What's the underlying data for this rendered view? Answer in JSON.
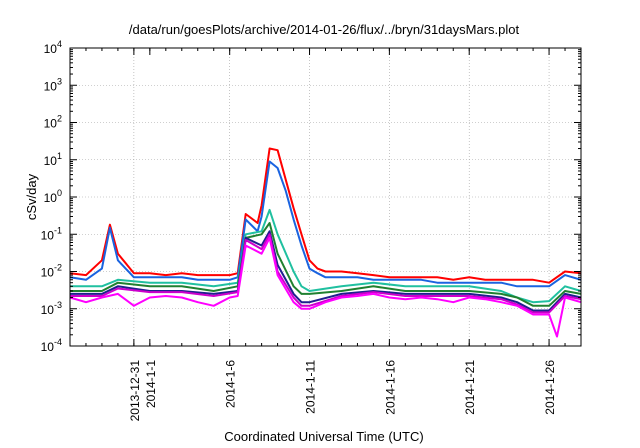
{
  "chart_data": {
    "type": "line",
    "title": "/data/run/goesPlots/archive/2014-01-26/flux/../bryn/31daysMars.plot",
    "xlabel": "Coordinated Universal Time (UTC)",
    "ylabel": "cSv/day",
    "yscale": "log",
    "ylim": [
      0.0001,
      10000
    ],
    "xlim": [
      "2013-12-27",
      "2014-01-28"
    ],
    "grid": true,
    "x_ticks": [
      "2013-12-31",
      "2014-1-1",
      "2014-1-6",
      "2014-1-11",
      "2014-1-16",
      "2014-1-21",
      "2014-1-26"
    ],
    "y_ticks": [
      {
        "value": 0.0001,
        "base": "10",
        "exp": "-4"
      },
      {
        "value": 0.001,
        "base": "10",
        "exp": "-3"
      },
      {
        "value": 0.01,
        "base": "10",
        "exp": "-2"
      },
      {
        "value": 0.1,
        "base": "10",
        "exp": "-1"
      },
      {
        "value": 1,
        "base": "10",
        "exp": "0"
      },
      {
        "value": 10,
        "base": "10",
        "exp": "1"
      },
      {
        "value": 100,
        "base": "10",
        "exp": "2"
      },
      {
        "value": 1000,
        "base": "10",
        "exp": "3"
      },
      {
        "value": 10000,
        "base": "10",
        "exp": "4"
      }
    ],
    "series": [
      {
        "color": "#ff0000",
        "x": [
          "2013-12-27",
          "2013-12-28",
          "2013-12-29",
          "2013-12-29T12",
          "2013-12-30",
          "2013-12-31",
          "2014-01-01",
          "2014-01-02",
          "2014-01-03",
          "2014-01-04",
          "2014-01-05",
          "2014-01-06",
          "2014-01-06T12",
          "2014-01-07",
          "2014-01-07T18",
          "2014-01-08",
          "2014-01-08T12",
          "2014-01-09",
          "2014-01-09T12",
          "2014-01-10",
          "2014-01-10T12",
          "2014-01-11",
          "2014-01-11T12",
          "2014-01-12",
          "2014-01-13",
          "2014-01-14",
          "2014-01-15",
          "2014-01-16",
          "2014-01-17",
          "2014-01-18",
          "2014-01-19",
          "2014-01-20",
          "2014-01-21",
          "2014-01-22",
          "2014-01-23",
          "2014-01-24",
          "2014-01-25",
          "2014-01-26",
          "2014-01-27",
          "2014-01-28"
        ],
        "values": [
          0.009,
          0.008,
          0.02,
          0.18,
          0.03,
          0.009,
          0.009,
          0.008,
          0.009,
          0.008,
          0.008,
          0.008,
          0.009,
          0.35,
          0.2,
          0.6,
          20,
          18,
          3,
          0.5,
          0.1,
          0.02,
          0.012,
          0.01,
          0.01,
          0.009,
          0.008,
          0.007,
          0.007,
          0.007,
          0.007,
          0.006,
          0.007,
          0.006,
          0.006,
          0.006,
          0.006,
          0.005,
          0.01,
          0.009
        ]
      },
      {
        "color": "#1a63e0",
        "x": [
          "2013-12-27",
          "2013-12-28",
          "2013-12-29",
          "2013-12-29T12",
          "2013-12-30",
          "2013-12-31",
          "2014-01-01",
          "2014-01-02",
          "2014-01-03",
          "2014-01-04",
          "2014-01-05",
          "2014-01-06",
          "2014-01-06T12",
          "2014-01-07",
          "2014-01-07T18",
          "2014-01-08",
          "2014-01-08T12",
          "2014-01-09",
          "2014-01-09T12",
          "2014-01-10",
          "2014-01-10T12",
          "2014-01-11",
          "2014-01-11T12",
          "2014-01-12",
          "2014-01-13",
          "2014-01-14",
          "2014-01-15",
          "2014-01-16",
          "2014-01-17",
          "2014-01-18",
          "2014-01-19",
          "2014-01-20",
          "2014-01-21",
          "2014-01-22",
          "2014-01-23",
          "2014-01-24",
          "2014-01-25",
          "2014-01-26",
          "2014-01-27",
          "2014-01-28"
        ],
        "values": [
          0.007,
          0.006,
          0.012,
          0.15,
          0.02,
          0.007,
          0.007,
          0.007,
          0.007,
          0.006,
          0.006,
          0.006,
          0.007,
          0.25,
          0.12,
          0.3,
          9,
          6,
          1.5,
          0.25,
          0.05,
          0.012,
          0.009,
          0.007,
          0.007,
          0.007,
          0.006,
          0.006,
          0.006,
          0.006,
          0.005,
          0.005,
          0.005,
          0.005,
          0.005,
          0.004,
          0.004,
          0.004,
          0.008,
          0.006
        ]
      },
      {
        "color": "#20c0a0",
        "x": [
          "2013-12-27",
          "2013-12-29",
          "2013-12-30",
          "2014-01-01",
          "2014-01-03",
          "2014-01-05",
          "2014-01-06T12",
          "2014-01-07",
          "2014-01-08",
          "2014-01-08T12",
          "2014-01-09",
          "2014-01-10",
          "2014-01-10T12",
          "2014-01-11",
          "2014-01-13",
          "2014-01-15",
          "2014-01-17",
          "2014-01-19",
          "2014-01-21",
          "2014-01-23",
          "2014-01-24",
          "2014-01-25",
          "2014-01-26",
          "2014-01-27",
          "2014-01-28"
        ],
        "values": [
          0.004,
          0.004,
          0.006,
          0.005,
          0.005,
          0.004,
          0.005,
          0.1,
          0.12,
          0.45,
          0.1,
          0.01,
          0.004,
          0.003,
          0.004,
          0.005,
          0.004,
          0.004,
          0.004,
          0.003,
          0.002,
          0.0015,
          0.0016,
          0.004,
          0.003
        ]
      },
      {
        "color": "#208030",
        "x": [
          "2013-12-27",
          "2013-12-29",
          "2013-12-30",
          "2014-01-01",
          "2014-01-03",
          "2014-01-05",
          "2014-01-06T12",
          "2014-01-07",
          "2014-01-08",
          "2014-01-08T12",
          "2014-01-09",
          "2014-01-10",
          "2014-01-10T12",
          "2014-01-11",
          "2014-01-13",
          "2014-01-15",
          "2014-01-17",
          "2014-01-19",
          "2014-01-21",
          "2014-01-23",
          "2014-01-24",
          "2014-01-25",
          "2014-01-26",
          "2014-01-27",
          "2014-01-28"
        ],
        "values": [
          0.003,
          0.003,
          0.005,
          0.004,
          0.004,
          0.003,
          0.004,
          0.08,
          0.1,
          0.2,
          0.03,
          0.004,
          0.0025,
          0.0025,
          0.003,
          0.004,
          0.003,
          0.003,
          0.003,
          0.0025,
          0.002,
          0.0012,
          0.0012,
          0.003,
          0.0025
        ]
      },
      {
        "color": "#1f1f8f",
        "x": [
          "2013-12-27",
          "2013-12-29",
          "2013-12-30",
          "2014-01-01",
          "2014-01-03",
          "2014-01-05",
          "2014-01-06T12",
          "2014-01-07",
          "2014-01-08",
          "2014-01-08T12",
          "2014-01-09",
          "2014-01-10",
          "2014-01-10T12",
          "2014-01-11",
          "2014-01-13",
          "2014-01-15",
          "2014-01-17",
          "2014-01-19",
          "2014-01-21",
          "2014-01-23",
          "2014-01-24",
          "2014-01-25",
          "2014-01-26",
          "2014-01-27",
          "2014-01-28"
        ],
        "values": [
          0.0025,
          0.0025,
          0.004,
          0.003,
          0.003,
          0.0025,
          0.003,
          0.08,
          0.05,
          0.12,
          0.015,
          0.0025,
          0.0015,
          0.0015,
          0.0025,
          0.003,
          0.0025,
          0.0025,
          0.0025,
          0.002,
          0.0015,
          0.0009,
          0.0009,
          0.0025,
          0.002
        ]
      },
      {
        "color": "#cc00cc",
        "x": [
          "2013-12-27",
          "2013-12-29",
          "2013-12-30",
          "2014-01-01",
          "2014-01-03",
          "2014-01-05",
          "2014-01-06T12",
          "2014-01-07",
          "2014-01-08",
          "2014-01-08T12",
          "2014-01-09",
          "2014-01-10",
          "2014-01-10T12",
          "2014-01-11",
          "2014-01-13",
          "2014-01-15",
          "2014-01-17",
          "2014-01-19",
          "2014-01-21",
          "2014-01-23",
          "2014-01-24",
          "2014-01-25",
          "2014-01-26",
          "2014-01-27",
          "2014-01-28"
        ],
        "values": [
          0.0022,
          0.0022,
          0.0035,
          0.0028,
          0.0028,
          0.0022,
          0.0028,
          0.07,
          0.04,
          0.1,
          0.01,
          0.002,
          0.0012,
          0.0012,
          0.0022,
          0.0028,
          0.0022,
          0.0022,
          0.0022,
          0.0018,
          0.0013,
          0.0008,
          0.0008,
          0.0022,
          0.0018
        ]
      },
      {
        "color": "#ff00ff",
        "x": [
          "2013-12-27",
          "2013-12-28",
          "2013-12-29",
          "2013-12-30",
          "2013-12-31",
          "2014-01-01",
          "2014-01-02",
          "2014-01-03",
          "2014-01-04",
          "2014-01-05",
          "2014-01-06",
          "2014-01-06T12",
          "2014-01-07",
          "2014-01-08",
          "2014-01-08T12",
          "2014-01-09",
          "2014-01-10",
          "2014-01-10T12",
          "2014-01-11",
          "2014-01-12",
          "2014-01-13",
          "2014-01-14",
          "2014-01-15",
          "2014-01-16",
          "2014-01-17",
          "2014-01-18",
          "2014-01-19",
          "2014-01-20",
          "2014-01-21",
          "2014-01-22",
          "2014-01-23",
          "2014-01-24",
          "2014-01-25",
          "2014-01-26",
          "2014-01-26T12",
          "2014-01-27",
          "2014-01-28"
        ],
        "values": [
          0.002,
          0.0015,
          0.002,
          0.0025,
          0.0012,
          0.002,
          0.0022,
          0.002,
          0.0015,
          0.0012,
          0.002,
          0.0022,
          0.05,
          0.03,
          0.08,
          0.008,
          0.0015,
          0.001,
          0.001,
          0.0015,
          0.002,
          0.0022,
          0.0025,
          0.002,
          0.0018,
          0.002,
          0.0018,
          0.0015,
          0.002,
          0.0018,
          0.0015,
          0.0012,
          0.0007,
          0.0007,
          0.00018,
          0.002,
          0.0015
        ]
      }
    ]
  }
}
